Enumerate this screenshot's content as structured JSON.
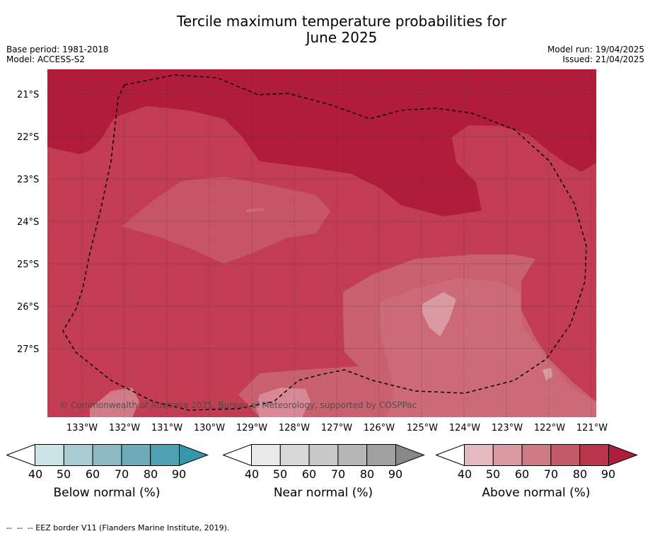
{
  "title_line1": "Tercile maximum temperature probabilities for",
  "title_line2": "June 2025",
  "base_period": "Base period: 1981-2018",
  "model": "Model: ACCESS-S2",
  "model_run": "Model run: 19/04/2025",
  "issued": "Issued: 21/04/2025",
  "lat_labels": [
    "21°S",
    "22°S",
    "23°S",
    "24°S",
    "25°S",
    "26°S",
    "27°S"
  ],
  "lon_labels": [
    "133°W",
    "132°W",
    "131°W",
    "130°W",
    "129°W",
    "128°W",
    "127°W",
    "126°W",
    "125°W",
    "124°W",
    "123°W",
    "122°W",
    "121°W"
  ],
  "copyright": "© Commonwealth of Australia 2025, Bureau of Meteorology, supported by COSPPac",
  "colorbars": [
    {
      "label": "Below normal (%)",
      "ticks": [
        "40",
        "50",
        "60",
        "70",
        "80",
        "90"
      ],
      "colors": [
        "#cce3e8",
        "#a9cbd2",
        "#8cb9c4",
        "#6dabb9",
        "#4ea1b2",
        "#3697ab"
      ]
    },
    {
      "label": "Near normal (%)",
      "ticks": [
        "40",
        "50",
        "60",
        "70",
        "80",
        "90"
      ],
      "colors": [
        "#e8e8e8",
        "#d8d8d8",
        "#c8c8c8",
        "#b6b6b6",
        "#a0a0a0",
        "#888888"
      ]
    },
    {
      "label": "Above normal (%)",
      "ticks": [
        "40",
        "50",
        "60",
        "70",
        "80",
        "90"
      ],
      "colors": [
        "#e4b9c0",
        "#d99aa2",
        "#cf7b86",
        "#c35a68",
        "#b8354a",
        "#ad1e3c"
      ]
    }
  ],
  "footnote": "--  --  -- EEZ border V11 (Flanders Marine Institute, 2019)."
}
